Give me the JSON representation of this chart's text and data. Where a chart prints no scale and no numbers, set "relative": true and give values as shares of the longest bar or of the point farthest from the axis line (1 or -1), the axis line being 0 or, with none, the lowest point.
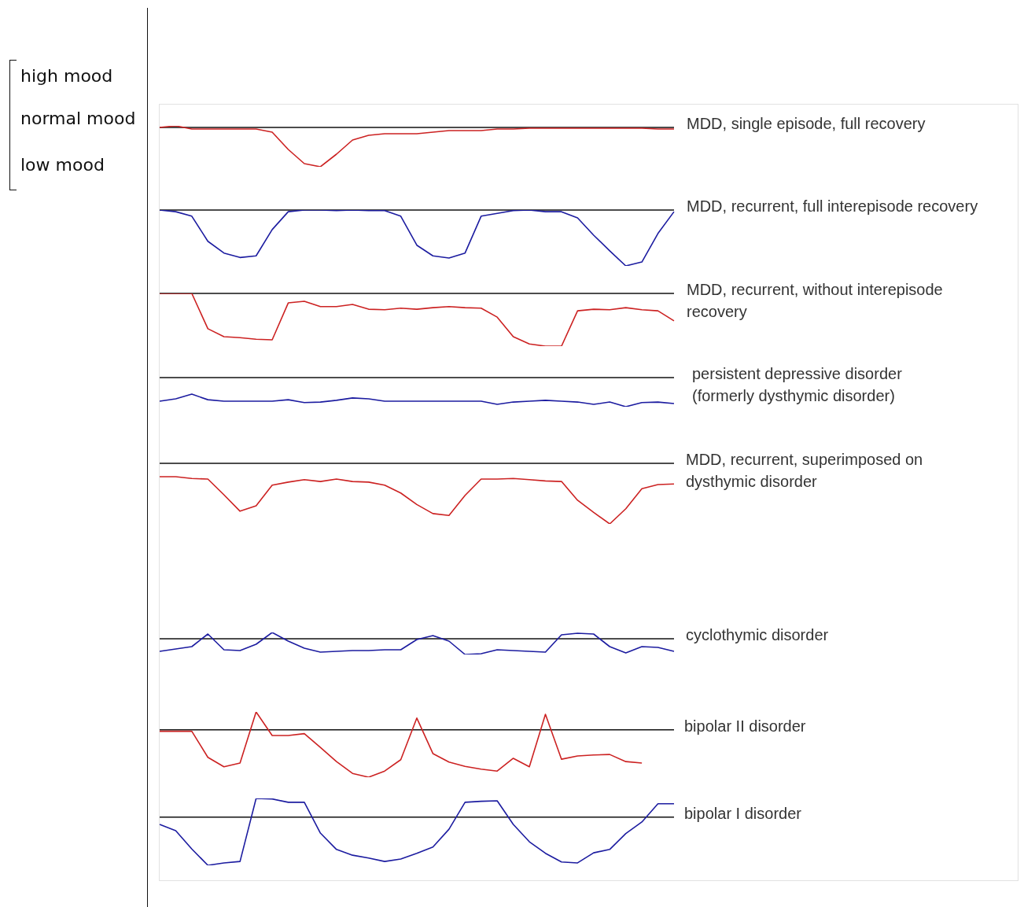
{
  "chart_data": [
    {
      "type": "line",
      "relative": true,
      "annotations": [
        "high mood",
        "normal mood",
        "low mood"
      ],
      "categories": [
        null,
        null,
        null,
        null,
        null,
        null,
        null,
        null,
        null,
        null,
        null,
        null,
        null,
        null,
        null,
        null,
        null,
        null,
        null,
        null,
        null,
        null,
        null,
        null,
        null,
        null,
        null,
        null,
        null,
        null,
        null,
        null,
        null
      ],
      "series": [
        {
          "name": "MDD, single episode, full recovery",
          "color": "#cc2222",
          "values": [
            0,
            0.04,
            -0.04,
            -0.04,
            -0.04,
            -0.04,
            -0.04,
            -0.12,
            -0.56,
            -0.92,
            -1,
            -0.68,
            -0.32,
            -0.2,
            -0.16,
            -0.16,
            -0.16,
            -0.12,
            -0.08,
            -0.08,
            -0.08,
            -0.04,
            -0.04,
            -0.02,
            -0.02,
            -0.02,
            -0.02,
            -0.02,
            -0.02,
            -0.02,
            -0.02,
            -0.04,
            -0.04
          ]
        }
      ]
    },
    {
      "type": "line",
      "relative": true,
      "categories": [
        null,
        null,
        null,
        null,
        null,
        null,
        null,
        null,
        null,
        null,
        null,
        null,
        null,
        null,
        null,
        null,
        null,
        null,
        null,
        null,
        null,
        null,
        null,
        null,
        null,
        null,
        null,
        null,
        null,
        null,
        null,
        null,
        null
      ],
      "series": [
        {
          "name": "MDD, recurrent, full interepisode recovery",
          "color": "#1c1ca0",
          "values": [
            0,
            -0.03,
            -0.11,
            -0.56,
            -0.77,
            -0.85,
            -0.82,
            -0.35,
            -0.03,
            0,
            0,
            -0.01,
            0,
            -0.01,
            -0.01,
            -0.11,
            -0.63,
            -0.82,
            -0.86,
            -0.77,
            -0.11,
            -0.06,
            -0.01,
            0,
            -0.03,
            -0.03,
            -0.14,
            -0.45,
            -0.73,
            -1,
            -0.93,
            -0.42,
            -0.03
          ]
        }
      ]
    },
    {
      "type": "line",
      "relative": true,
      "categories": [
        null,
        null,
        null,
        null,
        null,
        null,
        null,
        null,
        null,
        null,
        null,
        null,
        null,
        null,
        null,
        null,
        null,
        null,
        null,
        null,
        null,
        null,
        null,
        null,
        null,
        null,
        null,
        null,
        null,
        null,
        null,
        null,
        null
      ],
      "series": [
        {
          "name": "MDD, recurrent, without interepisode recovery",
          "color": "#cc2222",
          "values": [
            0,
            0,
            0,
            -0.67,
            -0.82,
            -0.84,
            -0.87,
            -0.88,
            -0.18,
            -0.15,
            -0.25,
            -0.25,
            -0.21,
            -0.3,
            -0.31,
            -0.28,
            -0.3,
            -0.27,
            -0.25,
            -0.27,
            -0.28,
            -0.45,
            -0.82,
            -0.96,
            -1,
            -1,
            -0.33,
            -0.3,
            -0.31,
            -0.27,
            -0.31,
            -0.33,
            -0.52
          ]
        }
      ]
    },
    {
      "type": "line",
      "relative": true,
      "categories": [
        null,
        null,
        null,
        null,
        null,
        null,
        null,
        null,
        null,
        null,
        null,
        null,
        null,
        null,
        null,
        null,
        null,
        null,
        null,
        null,
        null,
        null,
        null,
        null,
        null,
        null,
        null,
        null,
        null,
        null,
        null,
        null,
        null
      ],
      "series": [
        {
          "name": "persistent depressive disorder (formerly dysthymic disorder)",
          "color": "#1c1ca0",
          "values": [
            -0.81,
            -0.73,
            -0.57,
            -0.76,
            -0.81,
            -0.81,
            -0.81,
            -0.81,
            -0.76,
            -0.86,
            -0.84,
            -0.78,
            -0.7,
            -0.73,
            -0.81,
            -0.81,
            -0.81,
            -0.81,
            -0.81,
            -0.81,
            -0.81,
            -0.92,
            -0.84,
            -0.81,
            -0.78,
            -0.81,
            -0.84,
            -0.92,
            -0.84,
            -1,
            -0.86,
            -0.84,
            -0.89
          ]
        }
      ]
    },
    {
      "type": "line",
      "relative": true,
      "categories": [
        null,
        null,
        null,
        null,
        null,
        null,
        null,
        null,
        null,
        null,
        null,
        null,
        null,
        null,
        null,
        null,
        null,
        null,
        null,
        null,
        null,
        null,
        null,
        null,
        null,
        null,
        null,
        null,
        null,
        null,
        null,
        null,
        null
      ],
      "series": [
        {
          "name": "MDD, recurrent, superimposed on dysthymic disorder",
          "color": "#cc2222",
          "values": [
            -0.22,
            -0.22,
            -0.25,
            -0.26,
            -0.52,
            -0.79,
            -0.7,
            -0.36,
            -0.31,
            -0.27,
            -0.3,
            -0.26,
            -0.3,
            -0.31,
            -0.36,
            -0.49,
            -0.68,
            -0.83,
            -0.86,
            -0.53,
            -0.26,
            -0.26,
            -0.25,
            -0.27,
            -0.29,
            -0.3,
            -0.61,
            -0.81,
            -1,
            -0.75,
            -0.42,
            -0.35,
            -0.34
          ]
        }
      ]
    },
    {
      "type": "line",
      "relative": true,
      "categories": [
        null,
        null,
        null,
        null,
        null,
        null,
        null,
        null,
        null,
        null,
        null,
        null,
        null,
        null,
        null,
        null,
        null,
        null,
        null,
        null,
        null,
        null,
        null,
        null,
        null,
        null,
        null,
        null,
        null,
        null,
        null,
        null,
        null
      ],
      "series": [
        {
          "name": "cyclothymic disorder",
          "color": "#1c1ca0",
          "values": [
            -0.8,
            -0.65,
            -0.5,
            0.3,
            -0.7,
            -0.75,
            -0.35,
            0.4,
            -0.15,
            -0.6,
            -0.85,
            -0.8,
            -0.75,
            -0.75,
            -0.7,
            -0.7,
            -0.05,
            0.2,
            -0.15,
            -1,
            -0.95,
            -0.7,
            -0.75,
            -0.8,
            -0.85,
            0.25,
            0.35,
            0.3,
            -0.5,
            -0.9,
            -0.5,
            -0.55,
            -0.8
          ]
        }
      ]
    },
    {
      "type": "line",
      "relative": true,
      "categories": [
        null,
        null,
        null,
        null,
        null,
        null,
        null,
        null,
        null,
        null,
        null,
        null,
        null,
        null,
        null,
        null,
        null,
        null,
        null,
        null,
        null,
        null,
        null,
        null,
        null,
        null,
        null,
        null,
        null,
        null,
        null,
        null,
        null
      ],
      "series": [
        {
          "name": "bipolar II disorder",
          "color": "#cc2222",
          "values": [
            -0.03,
            -0.03,
            -0.03,
            -0.58,
            -0.78,
            -0.7,
            0.38,
            -0.12,
            -0.12,
            -0.08,
            -0.37,
            -0.67,
            -0.92,
            -1,
            -0.87,
            -0.63,
            0.25,
            -0.5,
            -0.68,
            -0.77,
            -0.83,
            -0.87,
            -0.6,
            -0.78,
            0.33,
            -0.62,
            -0.55,
            -0.53,
            -0.52,
            -0.67,
            -0.7,
            null,
            null
          ]
        }
      ]
    },
    {
      "type": "line",
      "relative": true,
      "categories": [
        null,
        null,
        null,
        null,
        null,
        null,
        null,
        null,
        null,
        null,
        null,
        null,
        null,
        null,
        null,
        null,
        null,
        null,
        null,
        null,
        null,
        null,
        null,
        null,
        null,
        null,
        null,
        null,
        null,
        null,
        null,
        null,
        null
      ],
      "series": [
        {
          "name": "bipolar I disorder",
          "color": "#1c1ca0",
          "values": [
            -0.15,
            -0.28,
            -0.66,
            -1,
            -0.95,
            -0.92,
            0.39,
            0.38,
            0.31,
            0.31,
            -0.33,
            -0.67,
            -0.79,
            -0.85,
            -0.92,
            -0.87,
            -0.75,
            -0.62,
            -0.25,
            0.31,
            0.33,
            0.34,
            -0.15,
            -0.51,
            -0.75,
            -0.93,
            -0.95,
            -0.74,
            -0.67,
            -0.34,
            -0.1,
            0.28,
            0.28
          ]
        }
      ]
    }
  ]
}
